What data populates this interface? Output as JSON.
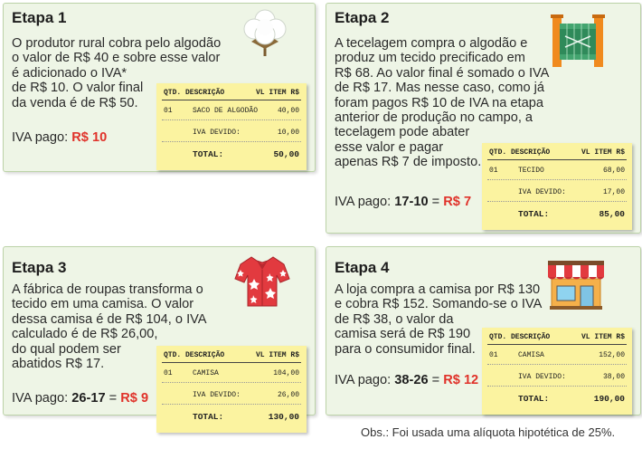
{
  "steps": [
    {
      "title": "Etapa 1",
      "text": "O produtor rural cobra pelo algodão\no valor de R$ 40 e sobre esse valor\né adicionado o IVA*\nde R$ 10. O valor final\nda venda é de R$ 50.",
      "iva_label": "IVA pago: ",
      "iva_calc": "",
      "iva_value": "R$ 10",
      "icon": "cotton-icon",
      "receipt": {
        "h_qtd": "QTD.",
        "h_desc": "DESCRIÇÃO",
        "h_vl": "VL ITEM R$",
        "qtd": "01",
        "item": "SACO DE ALGODÃO",
        "item_val": "40,00",
        "iva_label": "IVA DEVIDO:",
        "iva_val": "10,00",
        "total_label": "TOTAL:",
        "total_val": "50,00"
      }
    },
    {
      "title": "Etapa 2",
      "text": "A tecelagem compra o algodão e\nproduz um tecido precificado em\nR$ 68. Ao valor final é somado o IVA\nde R$ 17. Mas nesse caso, como já\nforam pagos R$ 10 de IVA na etapa\nanterior de produção no campo, a\ntecelagem pode abater\nesse valor e pagar\napenas R$ 7 de imposto.",
      "iva_label": "IVA pago: ",
      "iva_calc": "17-10",
      "iva_value": "R$ 7",
      "icon": "fabric-icon",
      "receipt": {
        "h_qtd": "QTD.",
        "h_desc": "DESCRIÇÃO",
        "h_vl": "VL ITEM R$",
        "qtd": "01",
        "item": "TECIDO",
        "item_val": "68,00",
        "iva_label": "IVA DEVIDO:",
        "iva_val": "17,00",
        "total_label": "TOTAL:",
        "total_val": "85,00"
      }
    },
    {
      "title": "Etapa 3",
      "text": "A fábrica de roupas transforma o\ntecido em uma camisa. O valor\ndessa camisa é de R$ 104, o IVA\ncalculado é de R$ 26,00,\ndo qual podem ser\nabatidos R$ 17.",
      "iva_label": "IVA pago: ",
      "iva_calc": "26-17",
      "iva_value": "R$ 9",
      "icon": "shirt-icon",
      "receipt": {
        "h_qtd": "QTD.",
        "h_desc": "DESCRIÇÃO",
        "h_vl": "VL ITEM R$",
        "qtd": "01",
        "item": "CAMISA",
        "item_val": "104,00",
        "iva_label": "IVA DEVIDO:",
        "iva_val": "26,00",
        "total_label": "TOTAL:",
        "total_val": "130,00"
      }
    },
    {
      "title": "Etapa 4",
      "text": "A loja compra a camisa por R$ 130\ne cobra R$ 152. Somando-se o IVA\nde R$ 38, o valor da\ncamisa será de R$ 190\npara o consumidor final.",
      "iva_label": "IVA pago: ",
      "iva_calc": "38-26",
      "iva_value": "R$ 12",
      "icon": "store-icon",
      "receipt": {
        "h_qtd": "QTD.",
        "h_desc": "DESCRIÇÃO",
        "h_vl": "VL ITEM R$",
        "qtd": "01",
        "item": "CAMISA",
        "item_val": "152,00",
        "iva_label": "IVA DEVIDO:",
        "iva_val": "38,00",
        "total_label": "TOTAL:",
        "total_val": "190,00"
      }
    }
  ],
  "note": "Obs.: Foi usada uma alíquota hipotética de 25%.",
  "colors": {
    "card_bg": "#eef5e6",
    "receipt_bg": "#fbf3a0",
    "accent_red": "#e0322a"
  }
}
